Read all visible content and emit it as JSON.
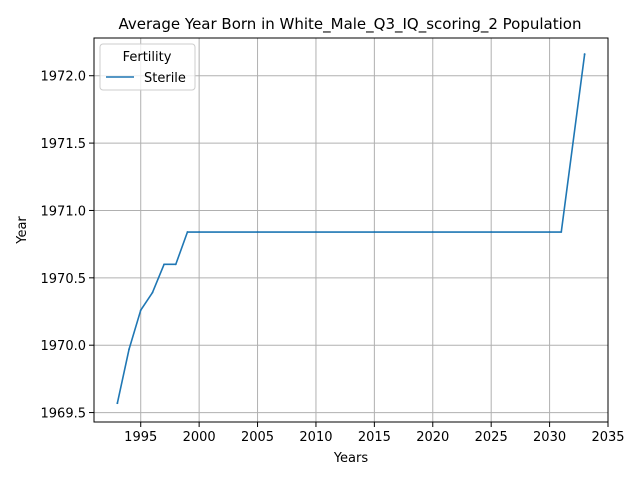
{
  "chart_data": {
    "type": "line",
    "title": "Average Year Born in White_Male_Q3_IQ_scoring_2 Population",
    "xlabel": "Years",
    "ylabel": "Year",
    "xlim": [
      1991.0,
      2035.0
    ],
    "ylim": [
      1969.43,
      1972.28
    ],
    "xticks": [
      "1995",
      "2000",
      "2005",
      "2010",
      "2015",
      "2020",
      "2025",
      "2030",
      "2035"
    ],
    "yticks": [
      "1969.5",
      "1970.0",
      "1970.5",
      "1971.0",
      "1971.5",
      "1972.0"
    ],
    "grid": true,
    "legend": {
      "title": "Fertility",
      "placement": "upper-left"
    },
    "series": [
      {
        "name": "Sterile",
        "color": "#1f77b4",
        "x": [
          1993,
          1994,
          1995,
          1996,
          1997,
          1998,
          1999,
          2000,
          2005,
          2010,
          2015,
          2020,
          2025,
          2030,
          2031,
          2033
        ],
        "y": [
          1969.57,
          1969.97,
          1970.26,
          1970.39,
          1970.6,
          1970.6,
          1970.84,
          1970.84,
          1970.84,
          1970.84,
          1970.84,
          1970.84,
          1970.84,
          1970.84,
          1970.84,
          1972.16
        ]
      }
    ]
  }
}
